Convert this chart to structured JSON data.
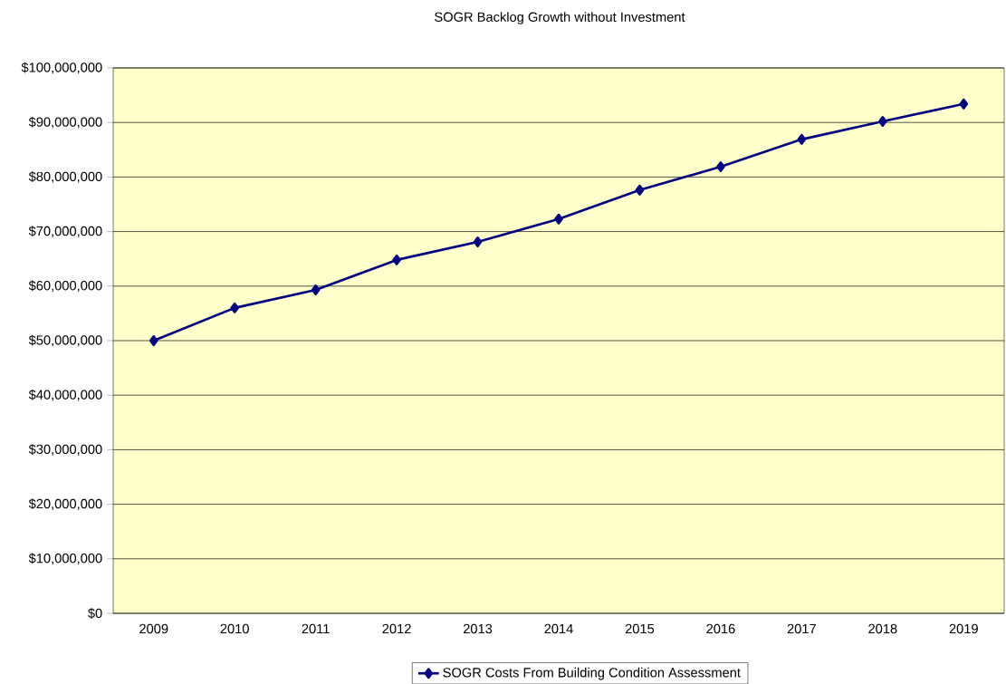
{
  "chart_data": {
    "type": "line",
    "title": "SOGR Backlog Growth without Investment",
    "categories": [
      "2009",
      "2010",
      "2011",
      "2012",
      "2013",
      "2014",
      "2015",
      "2016",
      "2017",
      "2018",
      "2019"
    ],
    "series": [
      {
        "name": "SOGR Costs From Building Condition Assessment",
        "color": "#000080",
        "values": [
          50000000,
          56000000,
          59300000,
          64800000,
          68100000,
          72300000,
          77600000,
          81900000,
          86900000,
          90200000,
          93400000
        ]
      }
    ],
    "ylim": [
      0,
      100000000
    ],
    "yticks": [
      {
        "value": 0,
        "label": "$0"
      },
      {
        "value": 10000000,
        "label": "$10,000,000"
      },
      {
        "value": 20000000,
        "label": "$20,000,000"
      },
      {
        "value": 30000000,
        "label": "$30,000,000"
      },
      {
        "value": 40000000,
        "label": "$40,000,000"
      },
      {
        "value": 50000000,
        "label": "$50,000,000"
      },
      {
        "value": 60000000,
        "label": "$60,000,000"
      },
      {
        "value": 70000000,
        "label": "$70,000,000"
      },
      {
        "value": 80000000,
        "label": "$80,000,000"
      },
      {
        "value": 90000000,
        "label": "$90,000,000"
      },
      {
        "value": 100000000,
        "label": "$100,000,000"
      }
    ],
    "grid": "y",
    "legend": "bottom",
    "marker": "diamond",
    "line_style": "solid"
  }
}
